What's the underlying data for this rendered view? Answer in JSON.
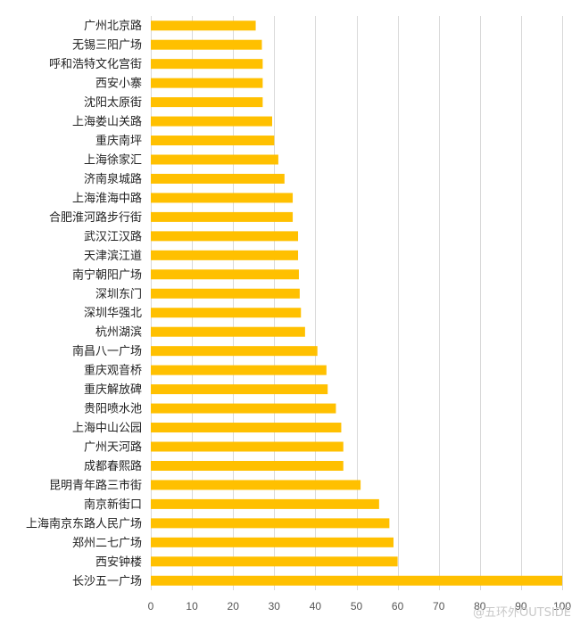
{
  "chart_data": {
    "type": "bar",
    "orientation": "horizontal",
    "categories": [
      "广州北京路",
      "无锡三阳广场",
      "呼和浩特文化宫街",
      "西安小寨",
      "沈阳太原街",
      "上海娄山关路",
      "重庆南坪",
      "上海徐家汇",
      "济南泉城路",
      "上海淮海中路",
      "合肥淮河路步行街",
      "武汉江汉路",
      "天津滨江道",
      "南宁朝阳广场",
      "深圳东门",
      "深圳华强北",
      "杭州湖滨",
      "南昌八一广场",
      "重庆观音桥",
      "重庆解放碑",
      "贵阳喷水池",
      "上海中山公园",
      "广州天河路",
      "成都春熙路",
      "昆明青年路三市街",
      "南京新街口",
      "上海南京东路人民广场",
      "郑州二七广场",
      "西安钟楼",
      "长沙五一广场"
    ],
    "values": [
      25.5,
      27,
      27.2,
      27.2,
      27.2,
      29.5,
      30,
      31,
      32.5,
      34.5,
      34.5,
      35.8,
      35.8,
      36,
      36.2,
      36.5,
      37.5,
      40.5,
      42.7,
      43,
      45,
      46.3,
      46.8,
      46.8,
      51,
      55.5,
      58,
      59,
      60,
      100
    ],
    "xlim": [
      0,
      100
    ],
    "xticks": [
      0,
      10,
      20,
      30,
      40,
      50,
      60,
      70,
      80,
      90,
      100
    ],
    "grid": true,
    "bar_color": "#FFC000",
    "grid_color": "#D9D9D9"
  },
  "watermark": "@五环外OUTSIDE"
}
